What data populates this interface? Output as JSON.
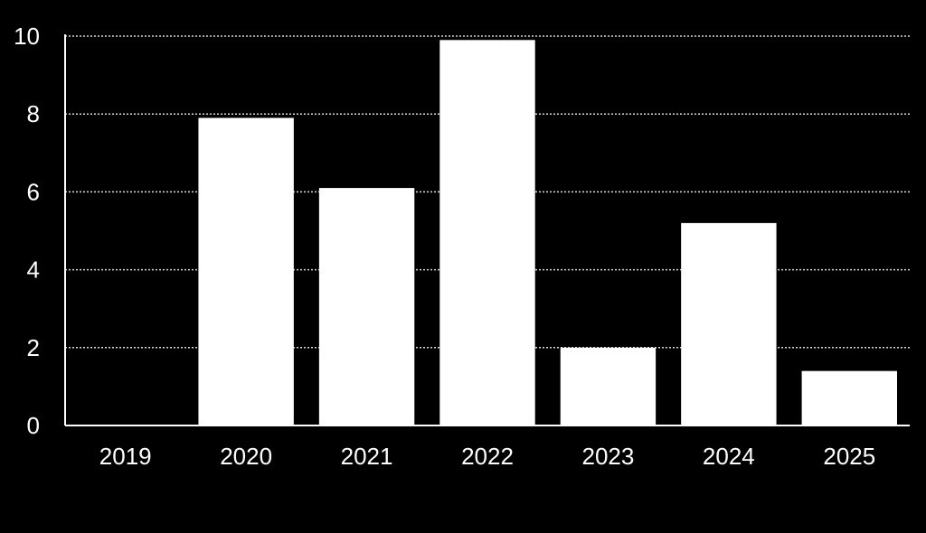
{
  "chart_data": {
    "type": "bar",
    "title": "",
    "xlabel": "",
    "ylabel": "",
    "categories": [
      "2019",
      "2020",
      "2021",
      "2022",
      "2023",
      "2024",
      "2025"
    ],
    "values": [
      0,
      7.9,
      6.1,
      9.9,
      2.0,
      5.2,
      1.4
    ],
    "ylim": [
      0,
      10
    ],
    "yticks": [
      0,
      2,
      4,
      6,
      8,
      10
    ],
    "grid": "horizontal dotted",
    "legend": "none",
    "colors": {
      "background": "#000000",
      "bar": "#ffffff",
      "text": "#ffffff",
      "grid": "#ffffff"
    }
  }
}
